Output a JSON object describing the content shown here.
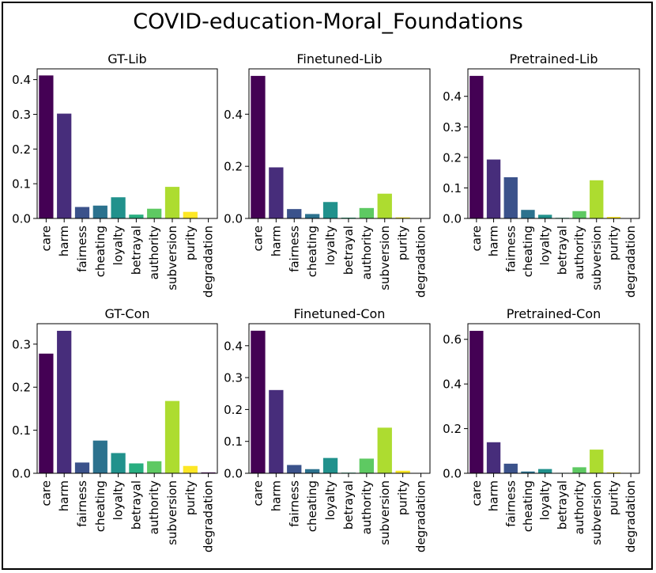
{
  "title": "COVID-education-Moral_Foundations",
  "colors": [
    "#440154",
    "#472d7b",
    "#3b528b",
    "#2c728e",
    "#21918c",
    "#28ae80",
    "#5ec962",
    "#addc30",
    "#fde725"
  ],
  "chart_data": [
    {
      "type": "bar",
      "title": "GT-Lib",
      "categories": [
        "care",
        "harm",
        "fairness",
        "cheating",
        "loyalty",
        "betrayal",
        "authority",
        "subversion",
        "purity",
        "degradation"
      ],
      "values": [
        0.412,
        0.302,
        0.033,
        0.037,
        0.061,
        0.011,
        0.028,
        0.091,
        0.019,
        0.001
      ],
      "ylim": [
        0,
        0.431
      ],
      "yticks": [
        0.0,
        0.1,
        0.2,
        0.3,
        0.4
      ],
      "ytick_labels": [
        "0.0",
        "0.1",
        "0.2",
        "0.3",
        "0.4"
      ]
    },
    {
      "type": "bar",
      "title": "Finetuned-Lib",
      "categories": [
        "care",
        "harm",
        "fairness",
        "cheating",
        "loyalty",
        "betrayal",
        "authority",
        "subversion",
        "purity",
        "degradation"
      ],
      "values": [
        0.547,
        0.196,
        0.036,
        0.017,
        0.063,
        0.003,
        0.04,
        0.095,
        0.004,
        0.001
      ],
      "ylim": [
        0,
        0.574
      ],
      "yticks": [
        0.0,
        0.2,
        0.4
      ],
      "ytick_labels": [
        "0.0",
        "0.2",
        "0.4"
      ]
    },
    {
      "type": "bar",
      "title": "Pretrained-Lib",
      "categories": [
        "care",
        "harm",
        "fairness",
        "cheating",
        "loyalty",
        "betrayal",
        "authority",
        "subversion",
        "purity",
        "degradation"
      ],
      "values": [
        0.467,
        0.193,
        0.135,
        0.028,
        0.012,
        0.002,
        0.024,
        0.125,
        0.005,
        0.001
      ],
      "ylim": [
        0,
        0.49
      ],
      "yticks": [
        0.0,
        0.1,
        0.2,
        0.3,
        0.4
      ],
      "ytick_labels": [
        "0.0",
        "0.1",
        "0.2",
        "0.3",
        "0.4"
      ]
    },
    {
      "type": "bar",
      "title": "GT-Con",
      "categories": [
        "care",
        "harm",
        "fairness",
        "cheating",
        "loyalty",
        "betrayal",
        "authority",
        "subversion",
        "purity",
        "degradation"
      ],
      "values": [
        0.278,
        0.331,
        0.025,
        0.076,
        0.047,
        0.023,
        0.028,
        0.168,
        0.017,
        0.002
      ],
      "ylim": [
        0,
        0.3475
      ],
      "yticks": [
        0.0,
        0.1,
        0.2,
        0.3
      ],
      "ytick_labels": [
        "0.0",
        "0.1",
        "0.2",
        "0.3"
      ]
    },
    {
      "type": "bar",
      "title": "Finetuned-Con",
      "categories": [
        "care",
        "harm",
        "fairness",
        "cheating",
        "loyalty",
        "betrayal",
        "authority",
        "subversion",
        "purity",
        "degradation"
      ],
      "values": [
        0.447,
        0.261,
        0.026,
        0.013,
        0.048,
        0.002,
        0.046,
        0.143,
        0.008,
        0.001
      ],
      "ylim": [
        0,
        0.469
      ],
      "yticks": [
        0.0,
        0.1,
        0.2,
        0.3,
        0.4
      ],
      "ytick_labels": [
        "0.0",
        "0.1",
        "0.2",
        "0.3",
        "0.4"
      ]
    },
    {
      "type": "bar",
      "title": "Pretrained-Con",
      "categories": [
        "care",
        "harm",
        "fairness",
        "cheating",
        "loyalty",
        "betrayal",
        "authority",
        "subversion",
        "purity",
        "degradation"
      ],
      "values": [
        0.638,
        0.139,
        0.043,
        0.008,
        0.019,
        0.002,
        0.027,
        0.106,
        0.004,
        0.001
      ],
      "ylim": [
        0,
        0.67
      ],
      "yticks": [
        0.0,
        0.2,
        0.4,
        0.6
      ],
      "ytick_labels": [
        "0.0",
        "0.2",
        "0.4",
        "0.6"
      ]
    }
  ]
}
